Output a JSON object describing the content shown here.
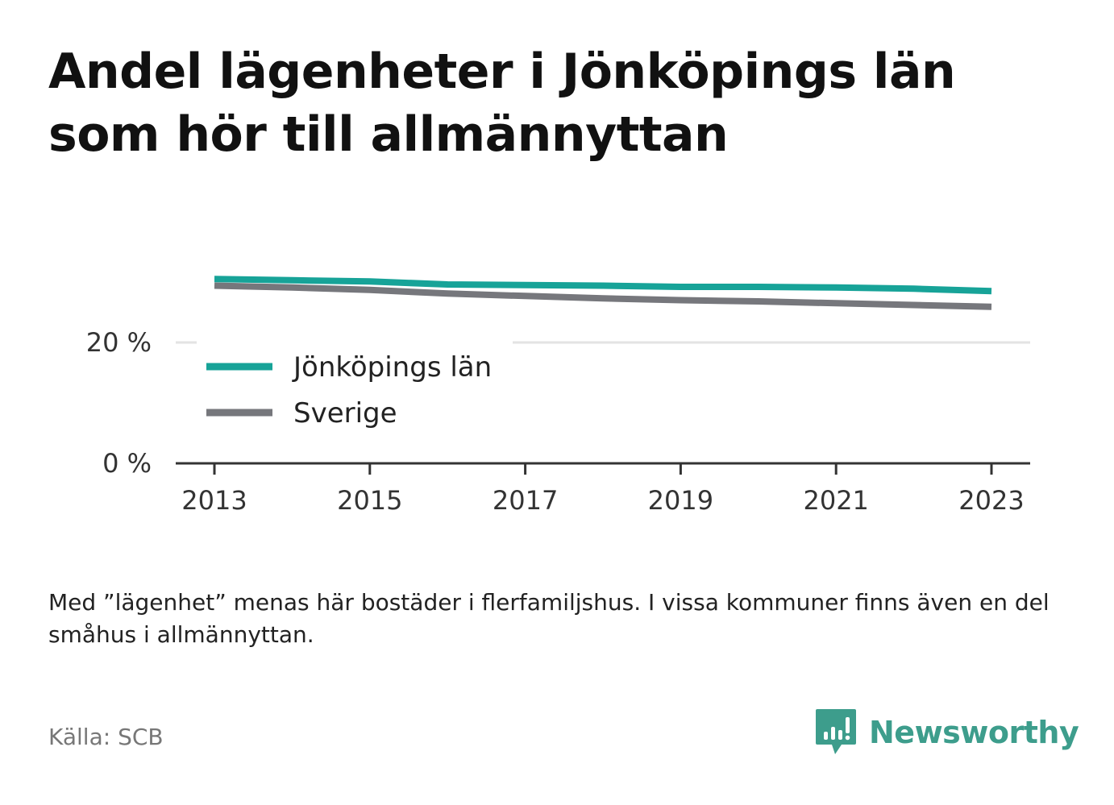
{
  "header": {
    "title": "Andel lägenheter i Jönköpings län som hör till allmännyttan"
  },
  "chart_data": {
    "type": "line",
    "x": [
      2013,
      2014,
      2015,
      2016,
      2017,
      2018,
      2019,
      2020,
      2021,
      2022,
      2023
    ],
    "x_ticks": [
      "2013",
      "2015",
      "2017",
      "2019",
      "2021",
      "2023"
    ],
    "y_ticks": [
      "0 %",
      "20 %"
    ],
    "ylim": [
      0,
      30
    ],
    "grid": true,
    "legend_position": "inside-left",
    "series": [
      {
        "name": "Jönköpings län",
        "color": "#17a398",
        "values": [
          30.5,
          30.3,
          30.1,
          29.6,
          29.5,
          29.4,
          29.2,
          29.2,
          29.1,
          28.9,
          28.5
        ]
      },
      {
        "name": "Sverige",
        "color": "#76777c",
        "values": [
          29.4,
          29.1,
          28.7,
          28.1,
          27.7,
          27.3,
          27.0,
          26.8,
          26.5,
          26.2,
          25.9
        ]
      }
    ]
  },
  "footer": {
    "note": "Med ”lägenhet” menas här bostäder i flerfamiljshus. I vissa kommuner finns även en del småhus i allmännyttan.",
    "source": "Källa: SCB",
    "brand": "Newsworthy",
    "brand_color": "#3d9d8c",
    "brand_icon": "bar-chart-speech-bubble-icon"
  }
}
